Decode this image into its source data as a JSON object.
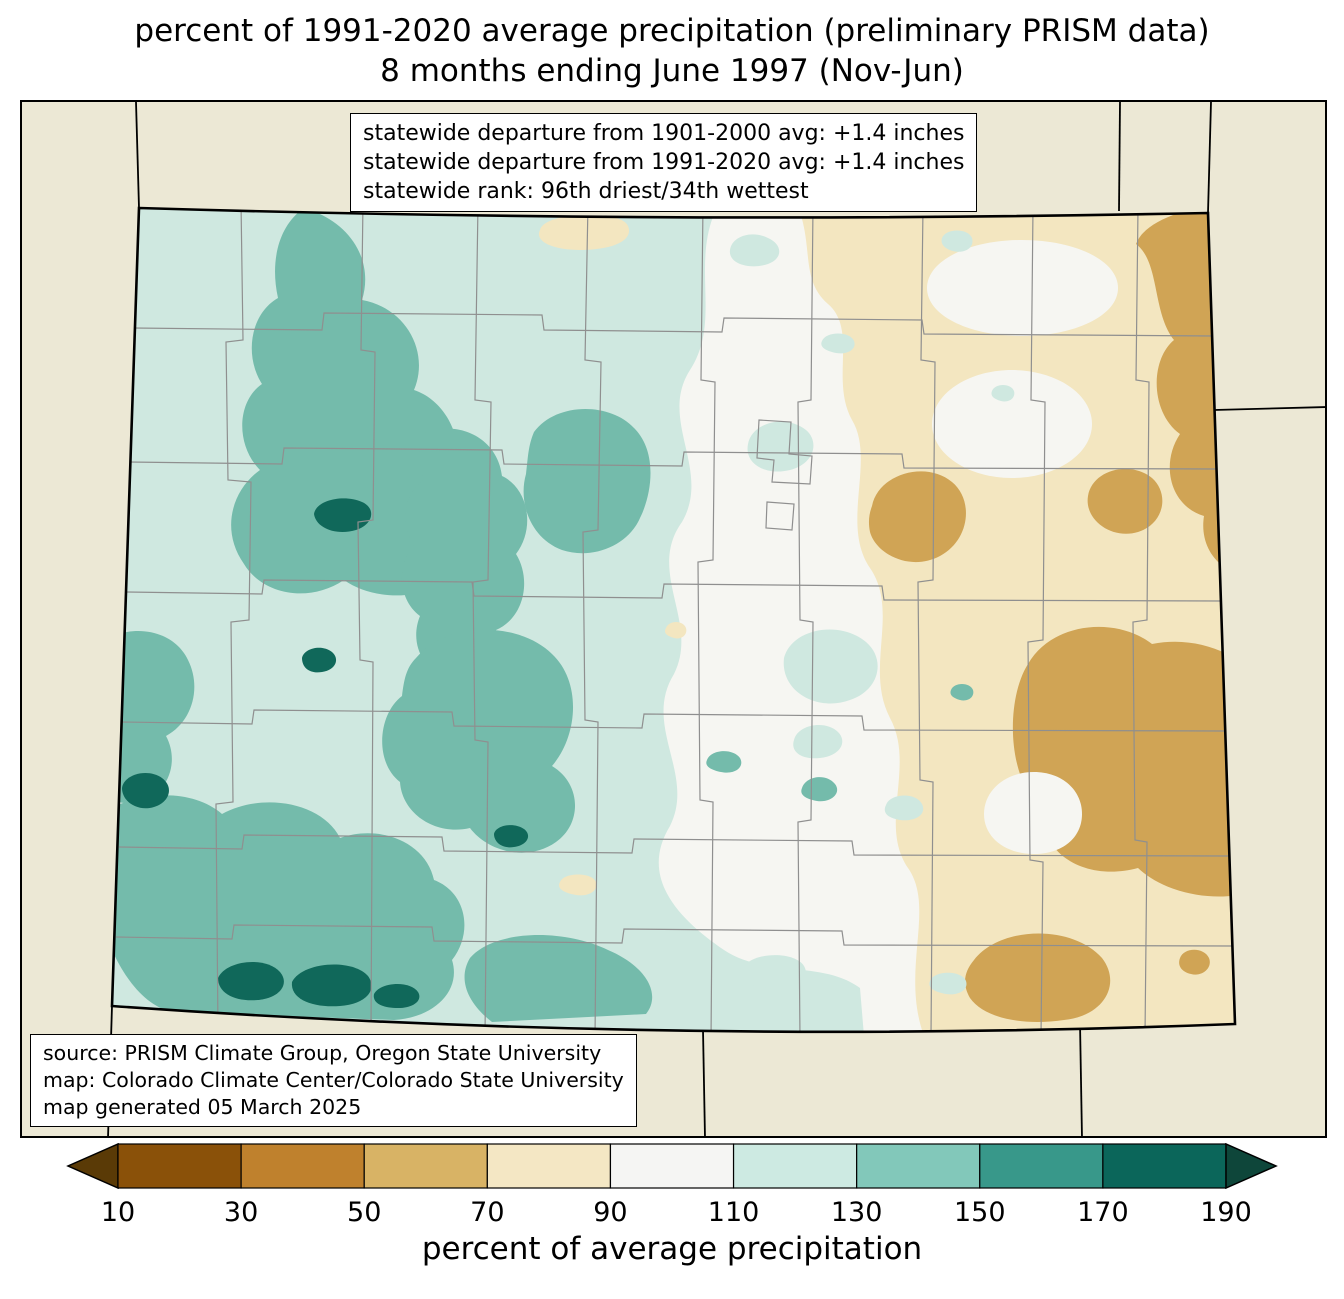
{
  "title": {
    "line1": "percent of 1991-2020 average precipitation (preliminary PRISM data)",
    "line2": "8 months ending June 1997 (Nov-Jun)"
  },
  "stats_box": {
    "line1": "statewide departure from 1901-2000 avg: +1.4 inches",
    "line2": "statewide departure from 1991-2020 avg: +1.4 inches",
    "line3": "statewide rank: 96th driest/34th wettest"
  },
  "source_box": {
    "line1": "source: PRISM Climate Group, Oregon State University",
    "line2": "map: Colorado Climate Center/Colorado State University",
    "line3": "map generated 05 March 2025"
  },
  "map": {
    "region": "Colorado",
    "background_outside": "#ece8d5",
    "state_border_color": "#000000",
    "county_border_color": "#8f8f8f",
    "palette": {
      "pct_50_70": "#d0a455",
      "pct_70_90": "#f3e6c0",
      "pct_90_110": "#f6f6f2",
      "pct_110_130": "#cfe8e0",
      "pct_130_150": "#74bbab",
      "pct_170_190": "#10685a"
    }
  },
  "colorbar": {
    "label": "percent of average precipitation",
    "ticks": [
      "10",
      "30",
      "50",
      "70",
      "90",
      "110",
      "130",
      "150",
      "170",
      "190"
    ],
    "arrow_left_color": "#5a3a06",
    "arrow_right_color": "#0e463a",
    "segments": [
      {
        "from": 10,
        "to": 30,
        "color": "#8a5109"
      },
      {
        "from": 30,
        "to": 50,
        "color": "#bf812d"
      },
      {
        "from": 50,
        "to": 70,
        "color": "#d8b365"
      },
      {
        "from": 70,
        "to": 90,
        "color": "#f4e7c4"
      },
      {
        "from": 90,
        "to": 110,
        "color": "#f5f5f3"
      },
      {
        "from": 110,
        "to": 130,
        "color": "#cdeae2"
      },
      {
        "from": 130,
        "to": 150,
        "color": "#82c8ba"
      },
      {
        "from": 150,
        "to": 170,
        "color": "#38988a"
      },
      {
        "from": 170,
        "to": 190,
        "color": "#0b665a"
      }
    ]
  }
}
